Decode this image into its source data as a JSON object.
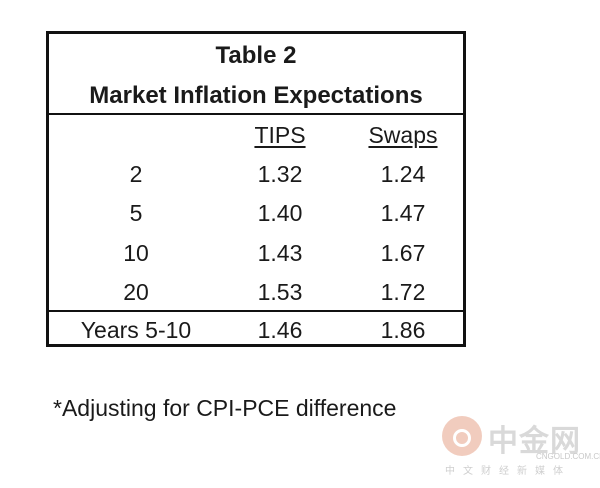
{
  "table": {
    "title_line1": "Table 2",
    "title_line2": "Market Inflation Expectations",
    "columns": [
      "",
      "TIPS",
      "Swaps"
    ],
    "rows": [
      {
        "label": "2",
        "tips": "1.32",
        "swaps": "1.24"
      },
      {
        "label": "5",
        "tips": "1.40",
        "swaps": "1.47"
      },
      {
        "label": "10",
        "tips": "1.43",
        "swaps": "1.67"
      },
      {
        "label": "20",
        "tips": "1.53",
        "swaps": "1.72"
      }
    ],
    "summary_row": {
      "label": "Years 5-10",
      "tips": "1.46",
      "swaps": "1.86"
    }
  },
  "footnote": "*Adjusting for CPI-PCE difference",
  "watermark": {
    "name": "中金网",
    "domain": "CNGOLD.COM.CN",
    "slogan": "中文财经新媒体"
  }
}
